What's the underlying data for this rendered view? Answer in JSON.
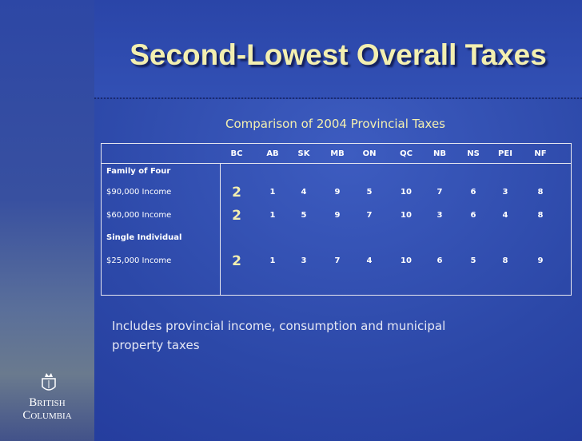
{
  "title": "Second-Lowest Overall Taxes",
  "subtitle": "Comparison of 2004 Provincial Taxes",
  "table": {
    "columns": [
      "BC",
      "AB",
      "SK",
      "MB",
      "ON",
      "QC",
      "NB",
      "NS",
      "PEI",
      "NF"
    ],
    "rows": [
      {
        "label": "Family of Four"
      },
      {
        "label": "$90,000 Income",
        "values": [
          2,
          1,
          4,
          9,
          5,
          10,
          7,
          6,
          3,
          8
        ]
      },
      {
        "label": "$60,000 Income",
        "values": [
          2,
          1,
          5,
          9,
          7,
          10,
          3,
          6,
          4,
          8
        ]
      },
      {
        "label": "Single Individual"
      },
      {
        "label": "$25,000 Income",
        "values": [
          2,
          1,
          3,
          7,
          4,
          10,
          6,
          5,
          8,
          9
        ]
      }
    ]
  },
  "note": "Includes provincial income, consumption and municipal property taxes",
  "logo": {
    "line1": "British",
    "line2": "Columbia"
  }
}
